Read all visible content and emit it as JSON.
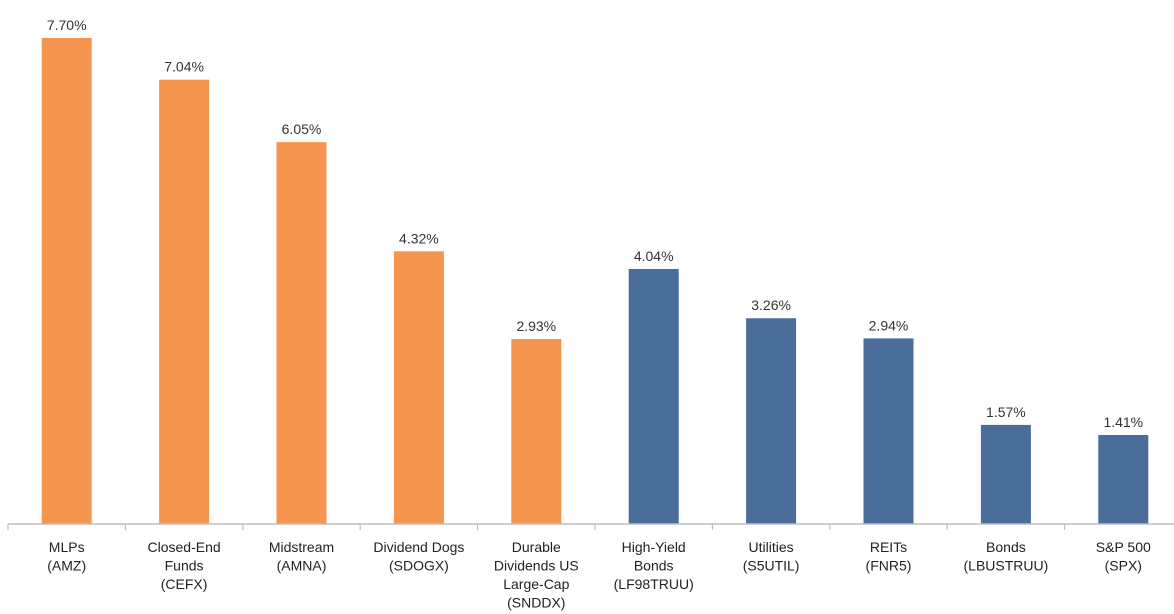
{
  "chart_data": {
    "type": "bar",
    "categories": [
      [
        "MLPs",
        "(AMZ)"
      ],
      [
        "Closed-End",
        "Funds",
        "(CEFX)"
      ],
      [
        "Midstream",
        "(AMNA)"
      ],
      [
        "Dividend Dogs",
        "(SDOGX)"
      ],
      [
        "Durable",
        "Dividends US",
        "Large-Cap",
        "(SNDDX)"
      ],
      [
        "High-Yield",
        "Bonds",
        "(LF98TRUU)"
      ],
      [
        "Utilities",
        "(S5UTIL)"
      ],
      [
        "REITs",
        "(FNR5)"
      ],
      [
        "Bonds",
        "(LBUSTRUU)"
      ],
      [
        "S&P 500",
        "(SPX)"
      ]
    ],
    "values": [
      7.7,
      7.04,
      6.05,
      4.32,
      2.93,
      4.04,
      3.26,
      2.94,
      1.57,
      1.41
    ],
    "value_labels": [
      "7.70%",
      "7.04%",
      "6.05%",
      "4.32%",
      "2.93%",
      "4.04%",
      "3.26%",
      "2.94%",
      "1.57%",
      "1.41%"
    ],
    "bar_colors": [
      "#F69550",
      "#F69550",
      "#F69550",
      "#F69550",
      "#F69550",
      "#4A6D9A",
      "#4A6D9A",
      "#4A6D9A",
      "#4A6D9A",
      "#4A6D9A"
    ],
    "ylim": [
      0,
      7.7
    ],
    "grid": false,
    "title": "",
    "xlabel": "",
    "ylabel": ""
  }
}
